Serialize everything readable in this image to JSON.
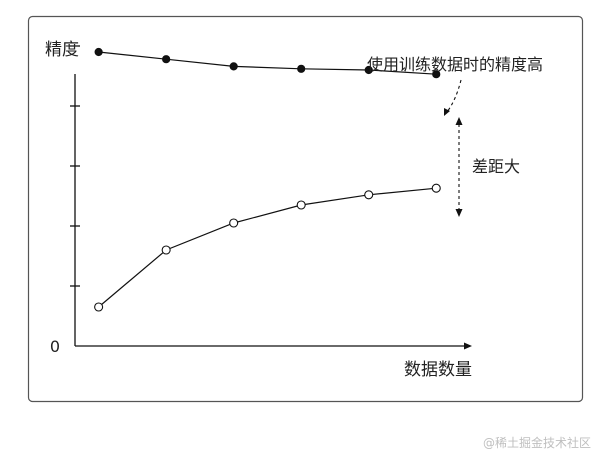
{
  "chart_data": {
    "type": "line",
    "title": "",
    "xlabel": "数据数量",
    "ylabel": "精度",
    "y_origin_label": "0",
    "x": [
      1,
      2,
      3,
      4,
      5,
      6
    ],
    "ylim": [
      0,
      5
    ],
    "xlim": [
      0.65,
      6.5
    ],
    "y_ticks": [
      1,
      2,
      3,
      4,
      5
    ],
    "series": [
      {
        "name": "",
        "marker": "filled",
        "values": [
          4.9,
          4.78,
          4.66,
          4.62,
          4.6,
          4.53
        ]
      },
      {
        "name": "",
        "marker": "open",
        "values": [
          0.65,
          1.6,
          2.05,
          2.35,
          2.52,
          2.63
        ]
      }
    ],
    "annotations": {
      "training_label": "使用训练数据时的精度高",
      "gap_label": "差距大"
    }
  },
  "watermark": "@稀土掘金技术社区"
}
